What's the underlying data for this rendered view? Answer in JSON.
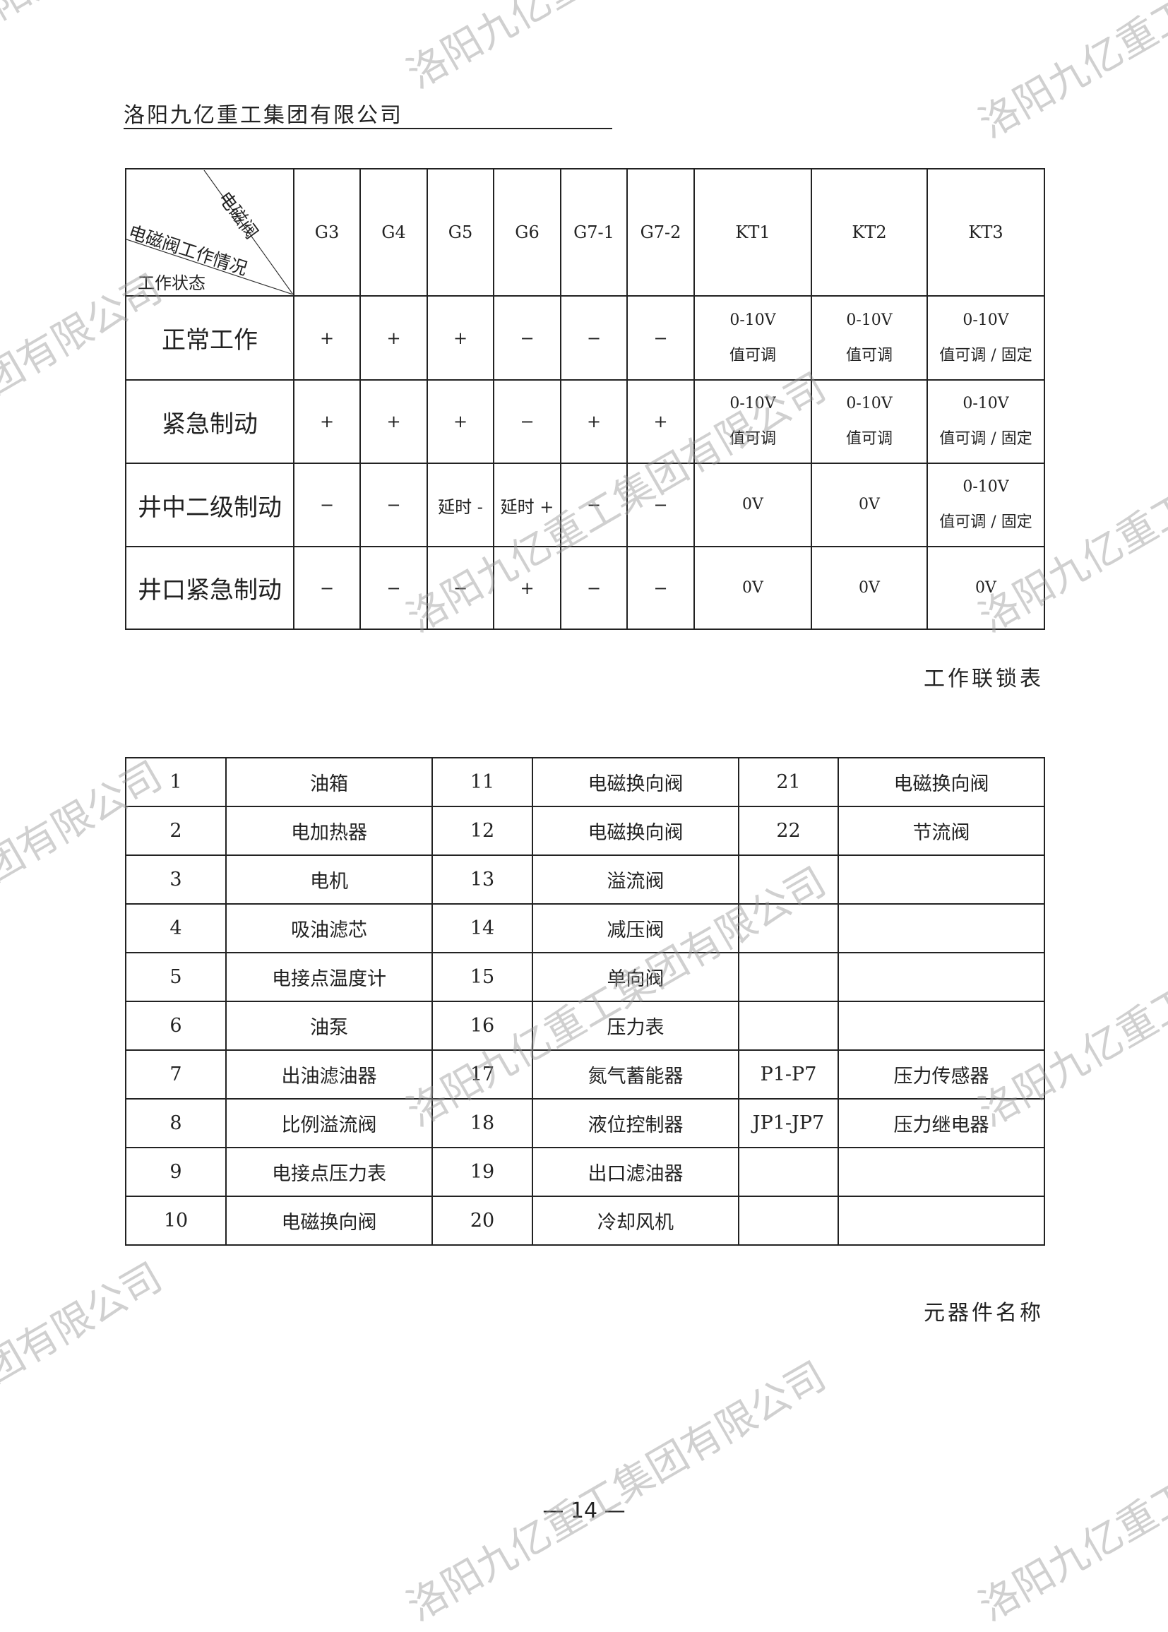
{
  "header": {
    "company": "洛阳九亿重工集团有限公司"
  },
  "watermark": "洛阳九亿重工集团有限公司",
  "interlock_table": {
    "corner": {
      "top_right": "电磁阀",
      "middle": "电磁阀工作情况",
      "bottom_left": "工作状态"
    },
    "columns": [
      "G3",
      "G4",
      "G5",
      "G6",
      "G7-1",
      "G7-2",
      "KT1",
      "KT2",
      "KT3"
    ],
    "rows": [
      {
        "state": "正常工作",
        "cells": [
          "+",
          "+",
          "+",
          "−",
          "−",
          "−",
          "0-10V\n值可调",
          "0-10V\n值可调",
          "0-10V\n值可调 / 固定"
        ]
      },
      {
        "state": "紧急制动",
        "cells": [
          "+",
          "+",
          "+",
          "−",
          "+",
          "+",
          "0-10V\n值可调",
          "0-10V\n值可调",
          "0-10V\n值可调 / 固定"
        ]
      },
      {
        "state": "井中二级制动",
        "cells": [
          "−",
          "−",
          "延时 -",
          "延时 +",
          "−",
          "−",
          "0V",
          "0V",
          "0-10V\n值可调 / 固定"
        ]
      },
      {
        "state": "井口紧急制动",
        "cells": [
          "−",
          "−",
          "−",
          "+",
          "−",
          "−",
          "0V",
          "0V",
          "0V"
        ]
      }
    ],
    "caption": "工作联锁表"
  },
  "components_table": {
    "rows": [
      [
        "1",
        "油箱",
        "11",
        "电磁换向阀",
        "21",
        "电磁换向阀"
      ],
      [
        "2",
        "电加热器",
        "12",
        "电磁换向阀",
        "22",
        "节流阀"
      ],
      [
        "3",
        "电机",
        "13",
        "溢流阀",
        "",
        ""
      ],
      [
        "4",
        "吸油滤芯",
        "14",
        "减压阀",
        "",
        ""
      ],
      [
        "5",
        "电接点温度计",
        "15",
        "单向阀",
        "",
        ""
      ],
      [
        "6",
        "油泵",
        "16",
        "压力表",
        "",
        ""
      ],
      [
        "7",
        "出油滤油器",
        "17",
        "氮气蓄能器",
        "P1-P7",
        "压力传感器"
      ],
      [
        "8",
        "比例溢流阀",
        "18",
        "液位控制器",
        "JP1-JP7",
        "压力继电器"
      ],
      [
        "9",
        "电接点压力表",
        "19",
        "出口滤油器",
        "",
        ""
      ],
      [
        "10",
        "电磁换向阀",
        "20",
        "冷却风机",
        "",
        ""
      ]
    ],
    "caption": "元器件名称"
  },
  "footer": {
    "page_number": "— 14 —"
  }
}
